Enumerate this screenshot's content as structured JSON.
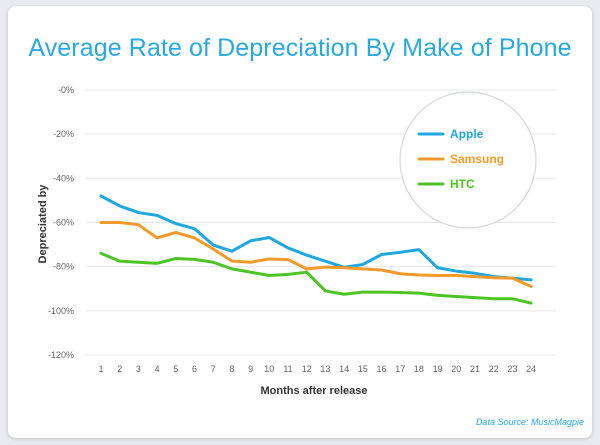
{
  "chart_data": {
    "type": "line",
    "title": "Average Rate of Depreciation By Make of Phone",
    "xlabel": "Months after release",
    "ylabel": "Depreciated by",
    "x": [
      1,
      2,
      3,
      4,
      5,
      6,
      7,
      8,
      9,
      10,
      11,
      12,
      13,
      14,
      15,
      16,
      17,
      18,
      19,
      20,
      21,
      22,
      23,
      24
    ],
    "ylim": [
      -120,
      0
    ],
    "yticks": [
      0,
      -20,
      -40,
      -60,
      -80,
      -100,
      -120
    ],
    "ytick_labels": [
      "-0%",
      "-20%",
      "-40%",
      "-60%",
      "-80%",
      "-100%",
      "-120%"
    ],
    "grid": true,
    "legend_position": "top-right",
    "series": [
      {
        "name": "Apple",
        "color": "#1ea7e1",
        "x0": 0,
        "values": [
          -48,
          -52.5,
          -55.5,
          -56.8,
          -60.5,
          -62.8,
          -70.2,
          -73,
          -68.3,
          -66.8,
          -71.5,
          -74.8,
          -77.5,
          -80.3,
          -79,
          -74.5,
          -73.5,
          -72.3,
          -80.5,
          -82,
          -83,
          -84.5,
          -85.2,
          -86
        ]
      },
      {
        "name": "Samsung",
        "color": "#f39a2b",
        "x0": 0,
        "values": [
          -60,
          -60,
          -61,
          -67,
          -64.5,
          -67,
          -72,
          -77.5,
          -78,
          -76.5,
          -76.8,
          -81,
          -80.2,
          -80.5,
          -81,
          -81.5,
          -83.2,
          -83.8,
          -84,
          -84,
          -84.5,
          -85,
          -85.2,
          -89
        ]
      },
      {
        "name": "HTC",
        "color": "#4cc423",
        "x0": 0,
        "values": [
          -74,
          -77.5,
          -78,
          -78.5,
          -76.3,
          -76.7,
          -78,
          -81,
          -82.5,
          -84,
          -83.5,
          -82.5,
          -91,
          -92.5,
          -91.5,
          -91.5,
          -91.7,
          -92,
          -93,
          -93.5,
          -94,
          -94.5,
          -94.5,
          -96.5
        ]
      }
    ],
    "source": "Data Source: MusicMagpie"
  }
}
